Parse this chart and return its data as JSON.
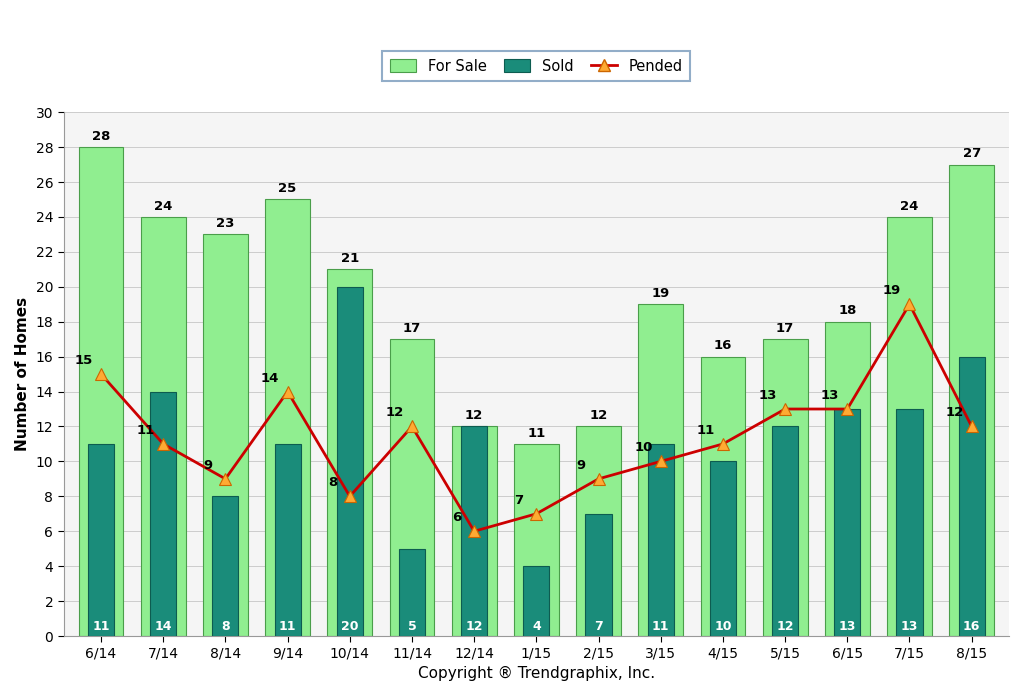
{
  "categories": [
    "6/14",
    "7/14",
    "8/14",
    "9/14",
    "10/14",
    "11/14",
    "12/14",
    "1/15",
    "2/15",
    "3/15",
    "4/15",
    "5/15",
    "6/15",
    "7/15",
    "8/15"
  ],
  "for_sale": [
    28,
    24,
    23,
    25,
    21,
    17,
    12,
    11,
    12,
    19,
    16,
    17,
    18,
    24,
    27
  ],
  "sold": [
    11,
    14,
    8,
    11,
    20,
    5,
    12,
    4,
    7,
    11,
    10,
    12,
    13,
    13,
    16
  ],
  "pended": [
    15,
    11,
    9,
    14,
    8,
    12,
    6,
    7,
    9,
    10,
    11,
    13,
    13,
    19,
    12
  ],
  "for_sale_color": "#90EE90",
  "for_sale_edge": "#4a9e4a",
  "sold_color": "#1a8c7a",
  "sold_edge": "#0d5c50",
  "pended_line_color": "#cc0000",
  "pended_marker_face": "#ffaa33",
  "pended_marker_edge": "#cc6600",
  "bg_color": "#ffffff",
  "plot_bg_color": "#f5f5f5",
  "ylabel": "Number of Homes",
  "xlabel": "Copyright ® Trendgraphix, Inc.",
  "ylim": [
    0,
    30
  ],
  "yticks": [
    0,
    2,
    4,
    6,
    8,
    10,
    12,
    14,
    16,
    18,
    20,
    22,
    24,
    26,
    28,
    30
  ],
  "legend_for_sale": "For Sale",
  "legend_sold": "Sold",
  "legend_pended": "Pended",
  "fs_bar_width": 0.72,
  "sold_bar_width": 0.42,
  "label_fontsize": 11,
  "tick_fontsize": 10,
  "annotation_fontsize": 9.5,
  "sold_annot_fontsize": 9,
  "pended_annot_x_offset": [
    -0.28,
    -0.28,
    -0.28,
    -0.28,
    -0.28,
    -0.28,
    -0.28,
    -0.28,
    -0.28,
    -0.28,
    -0.28,
    -0.28,
    -0.28,
    -0.28,
    -0.28
  ],
  "pended_annot_y_offset": [
    0.4,
    0.4,
    0.4,
    0.4,
    0.4,
    0.4,
    0.4,
    0.4,
    0.4,
    0.4,
    0.4,
    0.4,
    0.4,
    0.4,
    0.4
  ]
}
